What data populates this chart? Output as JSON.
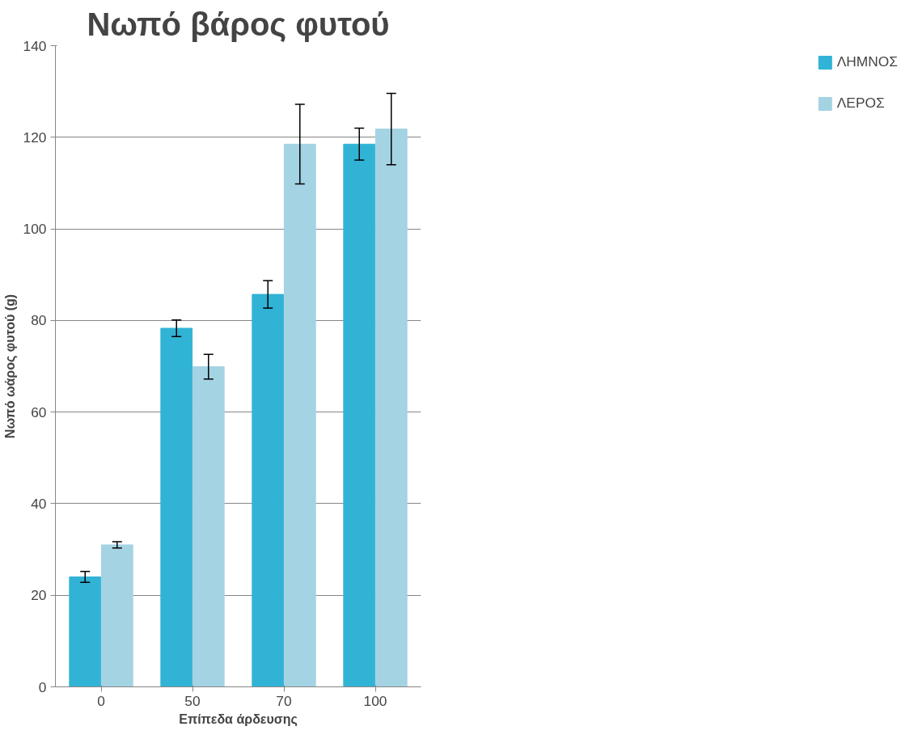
{
  "chart_data": {
    "type": "bar",
    "title": "Νωπό βάρος φυτού",
    "xlabel": "Επίπεδα άρδευσης",
    "ylabel": "Νωπό ωάρος φυτού (g)",
    "categories": [
      "0",
      "50",
      "70",
      "100"
    ],
    "series": [
      {
        "name": "ΛΗΜΝΟΣ",
        "color": "#31b3d6",
        "values": [
          24,
          78.3,
          85.7,
          118.5
        ],
        "errors": [
          1.2,
          1.8,
          3,
          3.5
        ]
      },
      {
        "name": "ΛΕΡΟΣ",
        "color": "#a4d3e3",
        "values": [
          31,
          69.9,
          118.5,
          121.8
        ],
        "errors": [
          0.7,
          2.7,
          8.7,
          7.8
        ]
      }
    ],
    "ylim": [
      0,
      140
    ],
    "yticks": [
      0,
      20,
      40,
      60,
      80,
      100,
      120,
      140
    ],
    "grid": "y",
    "legend": "right"
  }
}
